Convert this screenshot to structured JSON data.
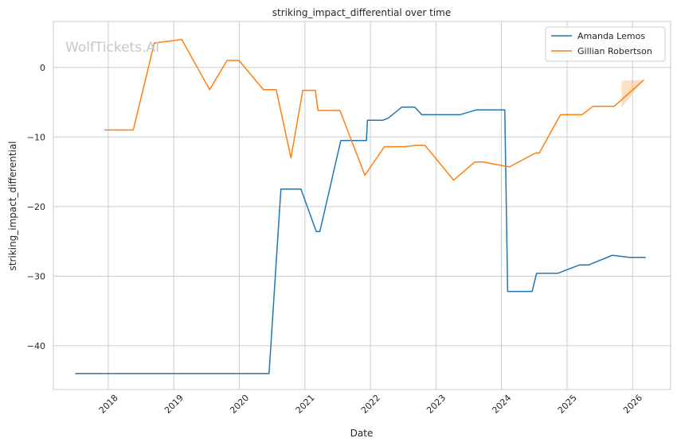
{
  "watermark": "WolfTickets.AI",
  "chart_data": {
    "type": "line",
    "title": "striking_impact_differential over time",
    "xlabel": "Date",
    "ylabel": "striking_impact_differential",
    "xlim": [
      "2017-03-01",
      "2026-08-01"
    ],
    "ylim": [
      -46.3,
      6.6
    ],
    "x_ticks": [
      "2018",
      "2019",
      "2020",
      "2021",
      "2022",
      "2023",
      "2024",
      "2025",
      "2026"
    ],
    "y_ticks": [
      0,
      -10,
      -20,
      -30,
      -40
    ],
    "grid": true,
    "legend_position": "top-right",
    "series": [
      {
        "name": "Amanda Lemos",
        "color": "#1f77b4",
        "points": [
          [
            "2017-07-01",
            -44.0
          ],
          [
            "2020-06-15",
            -44.0
          ],
          [
            "2020-08-20",
            -17.5
          ],
          [
            "2020-12-10",
            -17.5
          ],
          [
            "2021-03-05",
            -23.6
          ],
          [
            "2021-03-25",
            -23.6
          ],
          [
            "2021-07-20",
            -10.5
          ],
          [
            "2021-12-10",
            -10.5
          ],
          [
            "2021-12-15",
            -7.6
          ],
          [
            "2022-03-10",
            -7.6
          ],
          [
            "2022-04-10",
            -7.3
          ],
          [
            "2022-06-25",
            -5.7
          ],
          [
            "2022-09-05",
            -5.7
          ],
          [
            "2022-10-15",
            -6.8
          ],
          [
            "2023-05-15",
            -6.8
          ],
          [
            "2023-08-15",
            -6.1
          ],
          [
            "2024-01-20",
            -6.1
          ],
          [
            "2024-02-05",
            -32.2
          ],
          [
            "2024-06-20",
            -32.2
          ],
          [
            "2024-07-15",
            -29.6
          ],
          [
            "2024-11-10",
            -29.6
          ],
          [
            "2025-03-10",
            -28.4
          ],
          [
            "2025-05-01",
            -28.4
          ],
          [
            "2025-09-10",
            -27.0
          ],
          [
            "2025-12-15",
            -27.3
          ],
          [
            "2026-03-15",
            -27.3
          ]
        ]
      },
      {
        "name": "Gillian Robertson",
        "color": "#ff7f0e",
        "points": [
          [
            "2017-12-10",
            -9.0
          ],
          [
            "2018-05-20",
            -9.0
          ],
          [
            "2018-09-15",
            3.5
          ],
          [
            "2019-02-15",
            4.0
          ],
          [
            "2019-07-20",
            -3.2
          ],
          [
            "2019-10-25",
            1.0
          ],
          [
            "2019-12-30",
            1.0
          ],
          [
            "2020-05-15",
            -3.2
          ],
          [
            "2020-07-25",
            -3.2
          ],
          [
            "2020-10-15",
            -13.0
          ],
          [
            "2020-12-20",
            -3.3
          ],
          [
            "2021-02-28",
            -3.3
          ],
          [
            "2021-03-15",
            -6.2
          ],
          [
            "2021-07-15",
            -6.2
          ],
          [
            "2021-12-01",
            -15.5
          ],
          [
            "2022-03-20",
            -11.4
          ],
          [
            "2022-07-10",
            -11.4
          ],
          [
            "2022-09-15",
            -11.2
          ],
          [
            "2022-11-01",
            -11.2
          ],
          [
            "2023-04-10",
            -16.2
          ],
          [
            "2023-08-05",
            -13.6
          ],
          [
            "2023-09-20",
            -13.6
          ],
          [
            "2024-02-15",
            -14.3
          ],
          [
            "2024-07-10",
            -12.3
          ],
          [
            "2024-07-30",
            -12.3
          ],
          [
            "2024-11-25",
            -6.8
          ],
          [
            "2025-03-25",
            -6.8
          ],
          [
            "2025-05-25",
            -5.6
          ],
          [
            "2025-09-20",
            -5.6
          ],
          [
            "2026-03-05",
            -1.8
          ]
        ],
        "band": {
          "upper": [
            [
              "2025-11-01",
              -1.9
            ],
            [
              "2026-03-05",
              -1.8
            ]
          ],
          "lower": [
            [
              "2025-11-01",
              -5.8
            ],
            [
              "2026-03-05",
              -1.8
            ]
          ]
        }
      }
    ]
  }
}
